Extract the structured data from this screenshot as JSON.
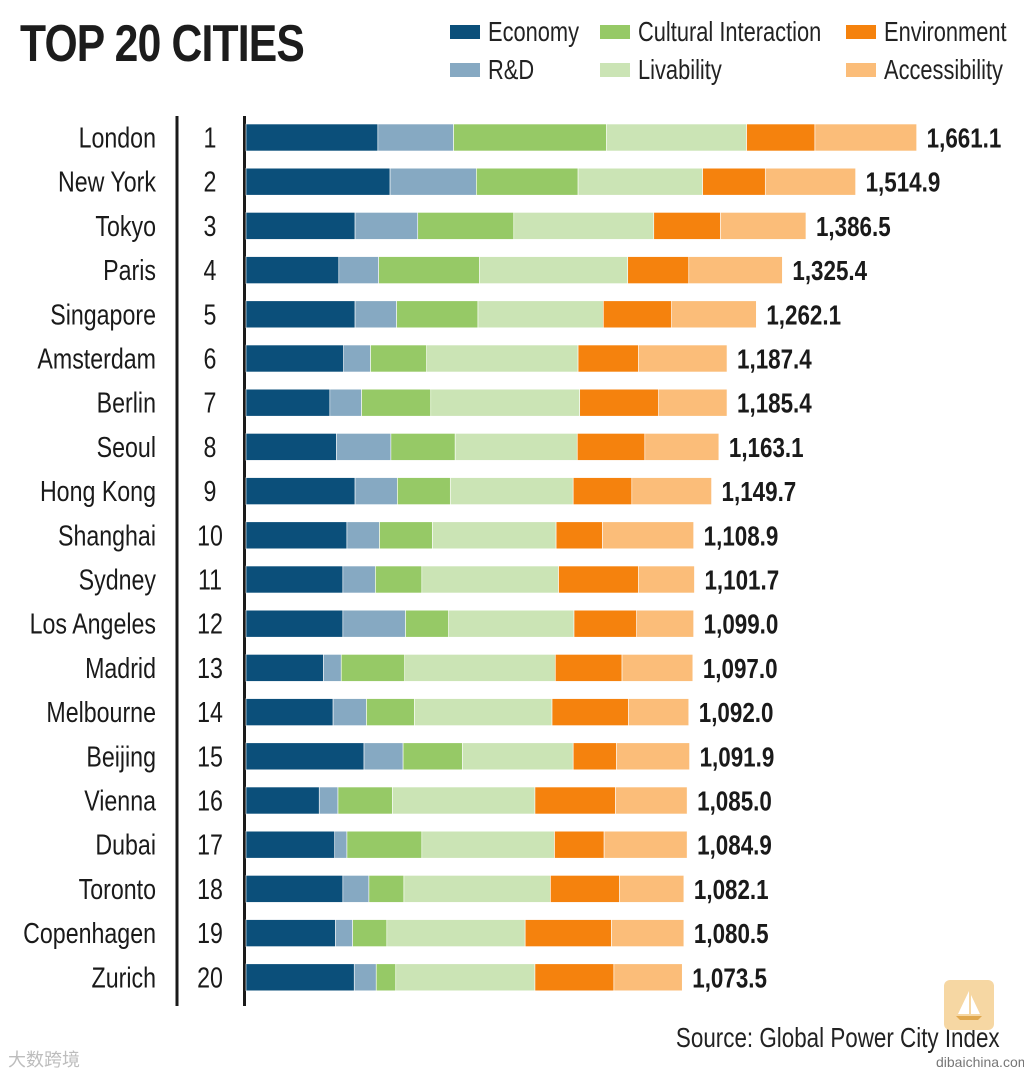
{
  "chart_data": {
    "type": "bar",
    "orientation": "horizontal",
    "stacked": true,
    "title": "TOP 20 CITIES",
    "source": "Source: Global Power City Index",
    "xlim": [
      0,
      1700
    ],
    "categories": [
      "London",
      "New York",
      "Tokyo",
      "Paris",
      "Singapore",
      "Amsterdam",
      "Berlin",
      "Seoul",
      "Hong Kong",
      "Shanghai",
      "Sydney",
      "Los Angeles",
      "Madrid",
      "Melbourne",
      "Beijing",
      "Vienna",
      "Dubai",
      "Toronto",
      "Copenhagen",
      "Zurich"
    ],
    "ranks": [
      "1",
      "2",
      "3",
      "4",
      "5",
      "6",
      "7",
      "8",
      "9",
      "10",
      "11",
      "12",
      "13",
      "14",
      "15",
      "16",
      "17",
      "18",
      "19",
      "20"
    ],
    "totals": [
      "1,661.1",
      "1,514.9",
      "1,386.5",
      "1,325.4",
      "1,262.1",
      "1,187.4",
      "1,185.4",
      "1,163.1",
      "1,149.7",
      "1,108.9",
      "1,101.7",
      "1,099.0",
      "1,097.0",
      "1,092.0",
      "1,091.9",
      "1,085.0",
      "1,084.9",
      "1,082.1",
      "1,080.5",
      "1,073.5"
    ],
    "series": [
      {
        "name": "Economy",
        "color": "#0b4f7a",
        "values": [
          324,
          354,
          268,
          228,
          268,
          240,
          206,
          222,
          268,
          248,
          238,
          238,
          190,
          214,
          290,
          180,
          218,
          238,
          220,
          266
        ]
      },
      {
        "name": "R&D",
        "color": "#86a9c2",
        "values": [
          186,
          212,
          154,
          98,
          102,
          66,
          78,
          134,
          104,
          80,
          80,
          154,
          44,
          82,
          96,
          46,
          30,
          64,
          42,
          54
        ]
      },
      {
        "name": "Cultural Interaction",
        "color": "#96c966",
        "values": [
          376,
          250,
          236,
          248,
          200,
          138,
          170,
          158,
          130,
          130,
          114,
          106,
          156,
          118,
          146,
          134,
          184,
          86,
          84,
          48
        ]
      },
      {
        "name": "Livability",
        "color": "#cbe4b5",
        "values": [
          344,
          306,
          344,
          364,
          308,
          372,
          366,
          300,
          302,
          304,
          336,
          308,
          370,
          338,
          272,
          350,
          326,
          360,
          340,
          342
        ]
      },
      {
        "name": "Environment",
        "color": "#f5820d",
        "values": [
          168,
          154,
          164,
          150,
          168,
          148,
          194,
          166,
          144,
          114,
          196,
          154,
          164,
          188,
          106,
          198,
          122,
          170,
          212,
          194
        ]
      },
      {
        "name": "Accessibility",
        "color": "#fbbd79",
        "values": [
          250,
          222,
          210,
          230,
          208,
          218,
          168,
          182,
          196,
          224,
          138,
          140,
          174,
          148,
          180,
          176,
          204,
          158,
          178,
          168
        ]
      }
    ]
  },
  "watermark": {
    "left_text": "大数跨境",
    "logo_text": "dibaichina.com"
  }
}
